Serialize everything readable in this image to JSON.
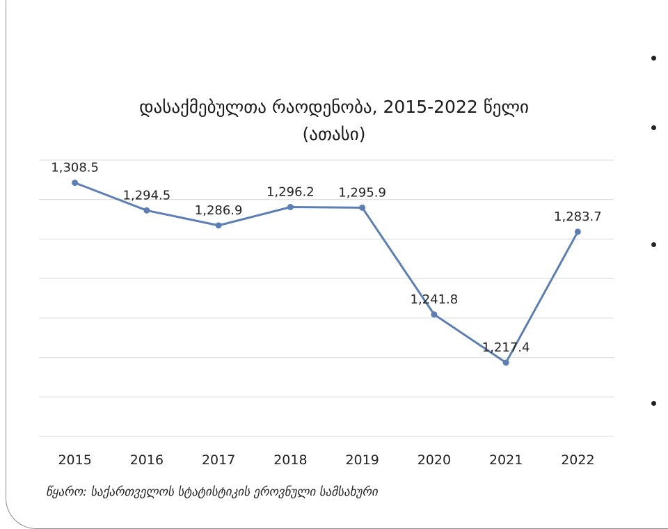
{
  "chart_data": {
    "type": "line",
    "title_line1": "დასაქმებულთა რაოდენობა, 2015-2022 წელი",
    "title_line2": "(ათასი)",
    "categories": [
      "2015",
      "2016",
      "2017",
      "2018",
      "2019",
      "2020",
      "2021",
      "2022"
    ],
    "values": [
      1308.5,
      1294.5,
      1286.9,
      1296.2,
      1295.9,
      1241.8,
      1217.4,
      1283.7
    ],
    "labels": [
      "1,308.5",
      "1,294.5",
      "1,286.9",
      "1,296.2",
      "1,295.9",
      "1,241.8",
      "1,217.4",
      "1,283.7"
    ],
    "ylim": [
      1180,
      1320
    ],
    "grid": true,
    "series_color": "#5b7fb5",
    "grid_color": "#d9d9d9"
  },
  "source_note": "წყარო: საქართველოს სტატისტიკის ეროვნული სამსახური"
}
